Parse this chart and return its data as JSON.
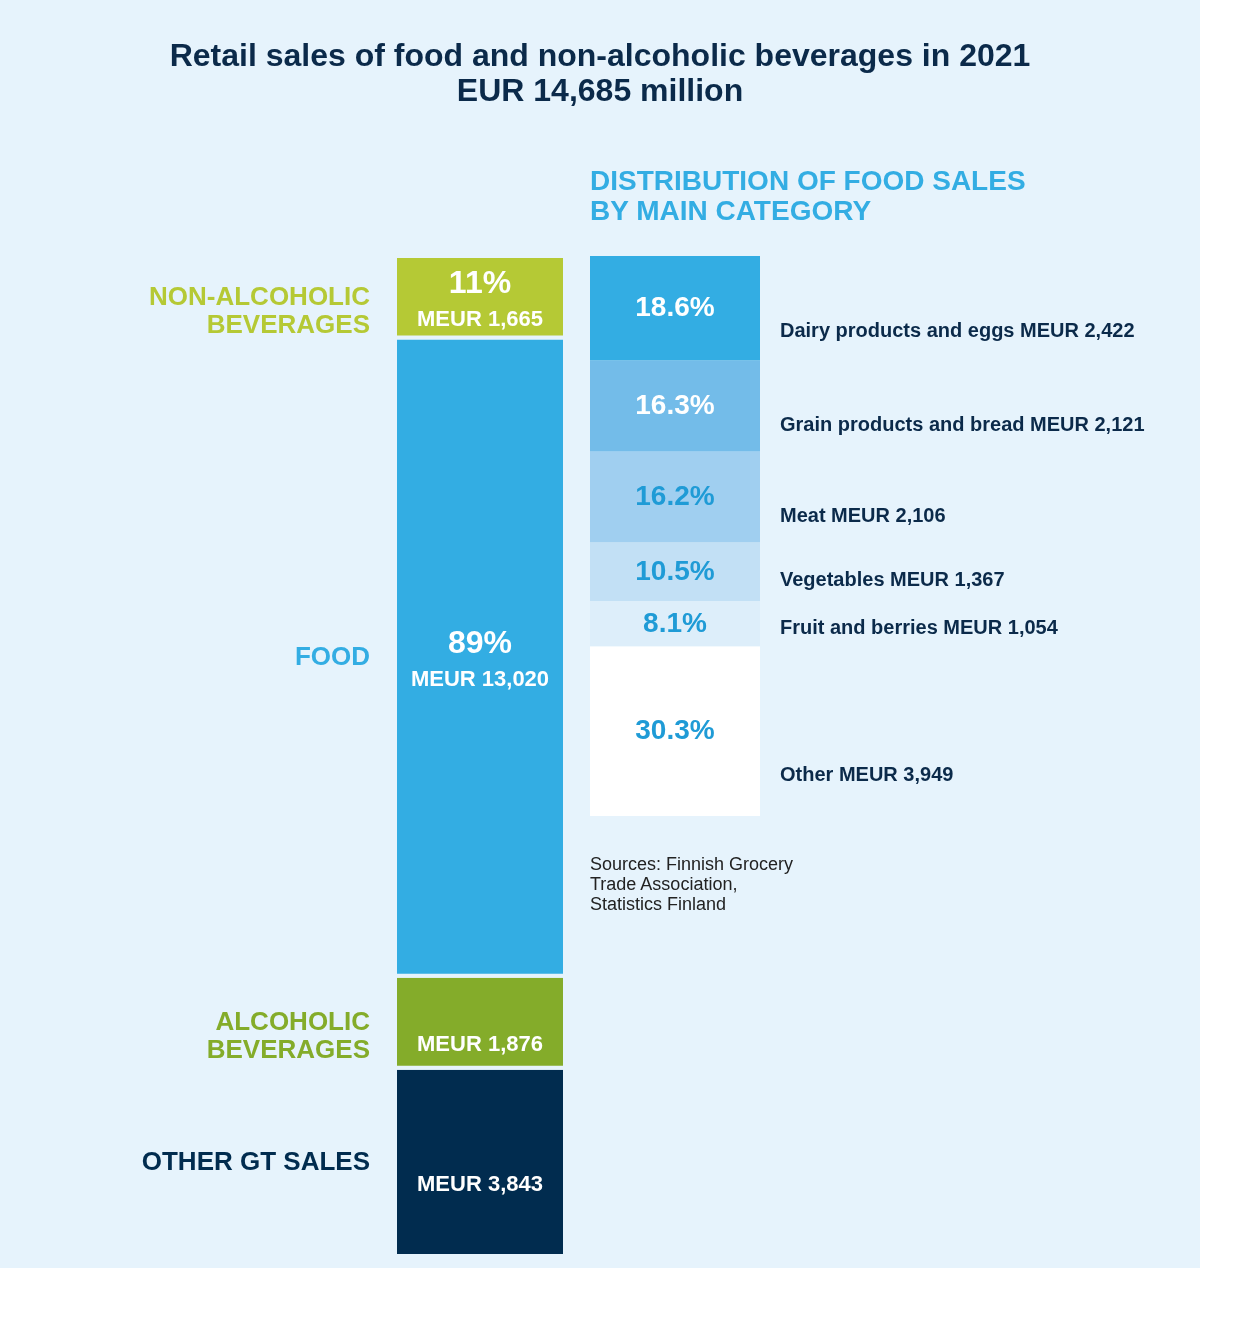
{
  "chart_data": [
    {
      "type": "bar",
      "stacked": true,
      "title": "Retail sales of food and non-alcoholic beverages in 2021",
      "subtitle": "EUR 14,685 million",
      "categories": [
        null
      ],
      "legend": false,
      "series": [
        {
          "name": "OTHER GT SALES",
          "color": "#012c4f",
          "values": [
            3843
          ],
          "value_labels": [
            "MEUR 3,843"
          ]
        },
        {
          "name": "ALCOHOLIC BEVERAGES",
          "color": "#84ac2a",
          "values": [
            1876
          ],
          "value_labels": [
            "MEUR 1,876"
          ]
        },
        {
          "name": "FOOD",
          "color": "#33ade3",
          "values": [
            13020
          ],
          "value_labels": [
            "MEUR 13,020"
          ]
        },
        {
          "name": "NON-ALCOHOLIC BEVERAGES",
          "color": "#b5c935",
          "values": [
            1665
          ],
          "value_labels": [
            "MEUR 1,665"
          ]
        }
      ],
      "annotations": [
        "11%",
        "89%"
      ]
    },
    {
      "type": "bar",
      "stacked": true,
      "title": "DISTRIBUTION OF FOOD SALES BY MAIN CATEGORY",
      "categories": [
        null
      ],
      "legend": false,
      "annotations": [
        "Sources: Finnish Grocery Trade Association, Statistics Finland"
      ],
      "series": [
        {
          "name": "Other   MEUR 3,949",
          "color": "#ffffff",
          "values": [
            30.3
          ],
          "value_labels": [
            "30.3%"
          ]
        },
        {
          "name": "Fruit and berries  MEUR 1,054",
          "color": "#ddeefa",
          "values": [
            8.1
          ],
          "value_labels": [
            "8.1%"
          ]
        },
        {
          "name": "Vegetables  MEUR 1,367",
          "color": "#c2e0f5",
          "values": [
            10.5
          ],
          "value_labels": [
            "10.5%"
          ]
        },
        {
          "name": "Meat MEUR 2,106",
          "color": "#a0cff0",
          "values": [
            16.2
          ],
          "value_labels": [
            "16.2%"
          ]
        },
        {
          "name": "Grain products and bread  MEUR 2,121",
          "color": "#73bce9",
          "values": [
            16.3
          ],
          "value_labels": [
            "16.3%"
          ]
        },
        {
          "name": "Dairy products and eggs  MEUR 2,422",
          "color": "#33ade3",
          "values": [
            18.6
          ],
          "value_labels": [
            "18.6%"
          ]
        }
      ]
    }
  ]
}
